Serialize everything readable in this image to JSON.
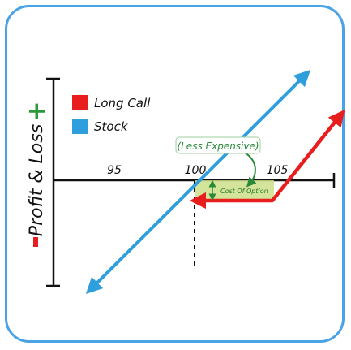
{
  "legend": {
    "items": [
      {
        "label": "Long Call",
        "color": "#e81d1d"
      },
      {
        "label": "Stock",
        "color": "#2e9fdc"
      }
    ]
  },
  "yaxis": {
    "label": "Profit & Loss",
    "plus_symbol": "+",
    "plus_color": "#2a9a3a",
    "minus_color": "#e81d1d"
  },
  "xaxis": {
    "ticks": [
      "95",
      "100",
      "105"
    ]
  },
  "annotations": {
    "less_expensive": "(Less Expensive)",
    "cost_of_option": "Cost Of Option"
  },
  "colors": {
    "frame": "#4aa3e6",
    "stock": "#2e9fdc",
    "long_call": "#e81d1d",
    "highlight": "#cde08a",
    "annotation_text": "#2a8a3a",
    "axis": "#111111"
  }
}
